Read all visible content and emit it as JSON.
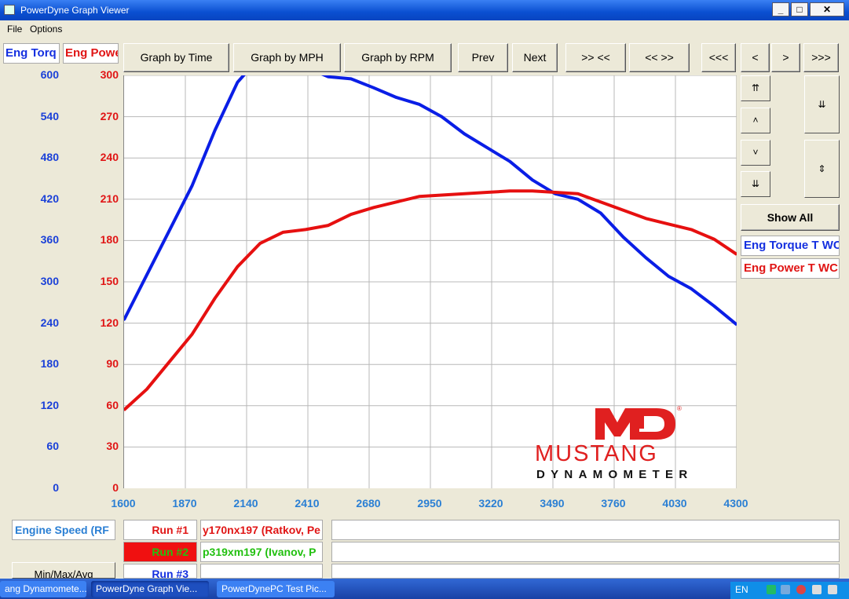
{
  "window": {
    "title": "PowerDyne Graph Viewer"
  },
  "menu": {
    "file": "File",
    "options": "Options"
  },
  "tabs": {
    "torque": "Eng Torq",
    "power": "Eng Powe"
  },
  "toolbar": {
    "by_time": "Graph by Time",
    "by_mph": "Graph by MPH",
    "by_rpm": "Graph by RPM",
    "prev": "Prev",
    "next": "Next",
    "zoom_in": ">> <<",
    "zoom_out": "<< >>",
    "first": "<<<",
    "left": "<",
    "right": ">",
    "last": ">>>"
  },
  "side": {
    "show_all": "Show All",
    "legend_torque": "Eng Torque T WC",
    "legend_power": "Eng Power T WC"
  },
  "bottom": {
    "axis_label": "Engine Speed (RF",
    "run1_label": "Run #1",
    "run1_name": "y170nx197 (Ratkov, Pe",
    "run2_label": "Run #2",
    "run2_name": "p319xm197 (Ivanov, P",
    "run3_label": "Run #3",
    "minmax": "Min/Max/Avg"
  },
  "logo": {
    "md": "MD",
    "reg": "®",
    "line1": "MUSTANG",
    "line2": "DYNAMOMETER"
  },
  "taskbar": {
    "t1": "ang Dynamomete...",
    "t2": "PowerDyne Graph Vie...",
    "t3": "PowerDynePC Test Pic...",
    "lang": "EN"
  },
  "colors": {
    "torque": "#0a1ee6",
    "power": "#e61010",
    "xaxis": "#2a7fd4",
    "logo": "#e02020"
  },
  "chart_data": {
    "type": "line",
    "x_ticks": [
      1600,
      1870,
      2140,
      2410,
      2680,
      2950,
      3220,
      3490,
      3760,
      4030,
      4300
    ],
    "xlim": [
      1600,
      4300
    ],
    "y_left_ticks": [
      0,
      60,
      120,
      180,
      240,
      300,
      360,
      420,
      480,
      540,
      600
    ],
    "y_left_lim": [
      0,
      600
    ],
    "y_right_ticks": [
      0,
      30,
      60,
      90,
      120,
      150,
      180,
      210,
      240,
      270,
      300
    ],
    "y_right_lim": [
      0,
      300
    ],
    "grid": true,
    "series": [
      {
        "name": "Eng Torque T WC",
        "axis": "left",
        "color": "#0a1ee6",
        "x": [
          1600,
          1700,
          1800,
          1900,
          2000,
          2100,
          2200,
          2250,
          2300,
          2350,
          2400,
          2450,
          2500,
          2600,
          2700,
          2800,
          2900,
          3000,
          3100,
          3200,
          3300,
          3400,
          3500,
          3600,
          3700,
          3800,
          3900,
          4000,
          4100,
          4200,
          4300
        ],
        "y": [
          245,
          310,
          375,
          440,
          520,
          590,
          627,
          630,
          625,
          622,
          615,
          605,
          598,
          595,
          582,
          568,
          558,
          540,
          515,
          495,
          475,
          448,
          428,
          420,
          400,
          365,
          335,
          308,
          290,
          265,
          238
        ]
      },
      {
        "name": "Eng Power T WC",
        "axis": "right",
        "color": "#e61010",
        "x": [
          1600,
          1700,
          1800,
          1900,
          2000,
          2100,
          2200,
          2300,
          2400,
          2500,
          2600,
          2700,
          2800,
          2900,
          3000,
          3100,
          3200,
          3300,
          3400,
          3500,
          3600,
          3700,
          3800,
          3900,
          4000,
          4100,
          4200,
          4300
        ],
        "y": [
          57,
          72,
          92,
          112,
          138,
          161,
          178,
          186,
          188,
          191,
          199,
          204,
          208,
          212,
          213,
          214,
          215,
          216,
          216,
          215,
          214,
          208,
          202,
          196,
          192,
          188,
          181,
          170
        ]
      }
    ]
  }
}
